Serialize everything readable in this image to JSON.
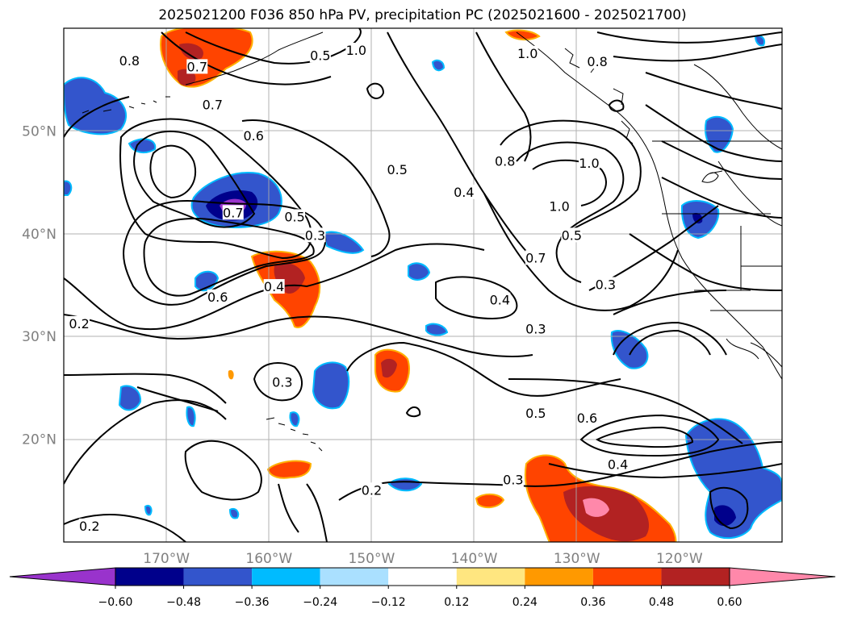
{
  "title": "2025021200 F036 850 hPa PV, precipitation PC (2025021600 - 2025021700)",
  "map": {
    "lon_range": [
      -180,
      -110
    ],
    "lat_range": [
      10,
      60
    ],
    "lon_ticks": [
      {
        "lon": -170,
        "label": "170°W"
      },
      {
        "lon": -160,
        "label": "160°W"
      },
      {
        "lon": -150,
        "label": "150°W"
      },
      {
        "lon": -140,
        "label": "140°W"
      },
      {
        "lon": -130,
        "label": "130°W"
      },
      {
        "lon": -120,
        "label": "120°W"
      }
    ],
    "lat_ticks": [
      {
        "lat": 20,
        "label": "20°N"
      },
      {
        "lat": 30,
        "label": "30°N"
      },
      {
        "lat": 40,
        "label": "40°N"
      },
      {
        "lat": 50,
        "label": "50°N"
      }
    ],
    "grid": true,
    "contour_labels": [
      {
        "text": "0.8",
        "lon": -173.6,
        "lat": 56.8
      },
      {
        "text": "0.7",
        "lon": -167.0,
        "lat": 56.2
      },
      {
        "text": "0.5",
        "lon": -155.0,
        "lat": 57.3
      },
      {
        "text": "1.0",
        "lon": -151.5,
        "lat": 57.8
      },
      {
        "text": "1.0",
        "lon": -134.8,
        "lat": 57.5
      },
      {
        "text": "0.8",
        "lon": -128.0,
        "lat": 56.7
      },
      {
        "text": "0.7",
        "lon": -165.5,
        "lat": 52.5
      },
      {
        "text": "0.6",
        "lon": -161.5,
        "lat": 49.5
      },
      {
        "text": "0.5",
        "lon": -147.5,
        "lat": 46.2
      },
      {
        "text": "0.4",
        "lon": -141.0,
        "lat": 44.0
      },
      {
        "text": "0.8",
        "lon": -137.0,
        "lat": 47.0
      },
      {
        "text": "1.0",
        "lon": -128.8,
        "lat": 46.8
      },
      {
        "text": "1.0",
        "lon": -131.7,
        "lat": 42.6
      },
      {
        "text": "0.7",
        "lon": -163.5,
        "lat": 42.0
      },
      {
        "text": "0.5",
        "lon": -157.5,
        "lat": 41.6
      },
      {
        "text": "0.3",
        "lon": -155.5,
        "lat": 39.8
      },
      {
        "text": "0.5",
        "lon": -130.5,
        "lat": 39.8
      },
      {
        "text": "0.7",
        "lon": -134.0,
        "lat": 37.6
      },
      {
        "text": "0.3",
        "lon": -127.2,
        "lat": 35.0
      },
      {
        "text": "0.4",
        "lon": -159.5,
        "lat": 34.8
      },
      {
        "text": "0.6",
        "lon": -165.0,
        "lat": 33.8
      },
      {
        "text": "0.4",
        "lon": -137.5,
        "lat": 33.5
      },
      {
        "text": "0.2",
        "lon": -178.5,
        "lat": 31.2
      },
      {
        "text": "0.3",
        "lon": -134.0,
        "lat": 30.7
      },
      {
        "text": "0.3",
        "lon": -158.7,
        "lat": 25.5
      },
      {
        "text": "0.5",
        "lon": -134.0,
        "lat": 22.5
      },
      {
        "text": "0.6",
        "lon": -129.0,
        "lat": 22.0
      },
      {
        "text": "0.4",
        "lon": -126.0,
        "lat": 17.5
      },
      {
        "text": "0.3",
        "lon": -136.2,
        "lat": 16.0
      },
      {
        "text": "0.2",
        "lon": -150.0,
        "lat": 15.0
      },
      {
        "text": "0.2",
        "lon": -177.5,
        "lat": 11.5
      }
    ]
  },
  "colorbar": {
    "colors": [
      "#9933cc",
      "#00008b",
      "#3355cc",
      "#00bbff",
      "#aae0ff",
      "#ffffff",
      "#ffe680",
      "#ff9900",
      "#ff4400",
      "#b22222",
      "#ff88aa"
    ],
    "labels": [
      "−0.60",
      "−0.48",
      "−0.36",
      "−0.24",
      "−0.12",
      "0.12",
      "0.24",
      "0.36",
      "0.48",
      "0.60"
    ]
  }
}
